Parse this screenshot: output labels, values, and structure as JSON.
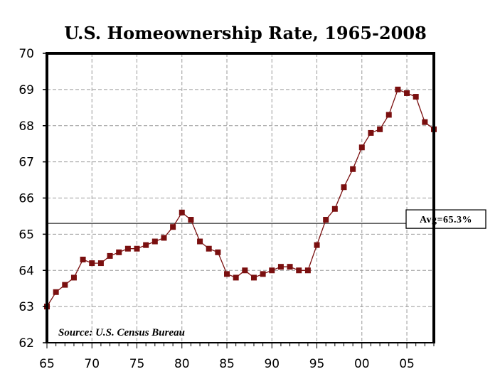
{
  "chart_data": {
    "type": "line",
    "title": "U.S. Homeownership Rate, 1965-2008",
    "xlabel": "",
    "ylabel": "",
    "x": [
      1965,
      1966,
      1967,
      1968,
      1969,
      1970,
      1971,
      1972,
      1973,
      1974,
      1975,
      1976,
      1977,
      1978,
      1979,
      1980,
      1981,
      1982,
      1983,
      1984,
      1985,
      1986,
      1987,
      1988,
      1989,
      1990,
      1991,
      1992,
      1993,
      1994,
      1995,
      1996,
      1997,
      1998,
      1999,
      2000,
      2001,
      2002,
      2003,
      2004,
      2005,
      2006,
      2007,
      2008
    ],
    "series": [
      {
        "name": "",
        "values": [
          63.0,
          63.4,
          63.6,
          63.8,
          64.3,
          64.2,
          64.2,
          64.4,
          64.5,
          64.6,
          64.6,
          64.7,
          64.8,
          64.9,
          65.2,
          65.6,
          65.4,
          64.8,
          64.6,
          64.5,
          63.9,
          63.8,
          64.0,
          63.8,
          63.9,
          64.0,
          64.1,
          64.1,
          64.0,
          64.0,
          64.7,
          65.4,
          65.7,
          66.3,
          66.8,
          67.4,
          67.8,
          67.9,
          68.3,
          69.0,
          68.9,
          68.8,
          68.1,
          67.9
        ]
      }
    ],
    "xlim": [
      1965,
      2008
    ],
    "ylim": [
      62,
      70
    ],
    "xticks": [
      1965,
      1970,
      1975,
      1980,
      1985,
      1990,
      1995,
      2000,
      2005
    ],
    "xtick_labels": [
      "65",
      "70",
      "75",
      "80",
      "85",
      "90",
      "95",
      "00",
      "05"
    ],
    "yticks": [
      62,
      63,
      64,
      65,
      66,
      67,
      68,
      69,
      70
    ],
    "ytick_labels": [
      "62",
      "63",
      "64",
      "65",
      "66",
      "67",
      "68",
      "69",
      "70"
    ],
    "grid": true,
    "reference_line": {
      "value": 65.3,
      "label": "Avg=65.3%"
    },
    "annotation": "Source: U.S. Census Bureau",
    "colors": {
      "series": "#7a0f0f",
      "marker": "#7a0f0f",
      "grid": "#999999",
      "axis": "#000000"
    }
  }
}
